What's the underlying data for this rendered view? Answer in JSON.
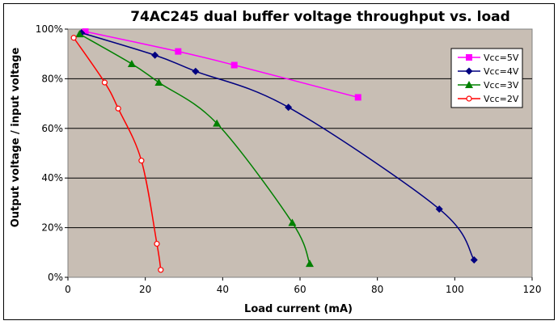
{
  "chart_data": {
    "type": "line",
    "title": "74AC245 dual buffer voltage throughput vs. load",
    "xlabel": "Load current (mA)",
    "ylabel": "Output voltage / input voltage",
    "xlim": [
      0,
      120
    ],
    "ylim": [
      0,
      100
    ],
    "x_ticks": [
      "0",
      "20",
      "40",
      "60",
      "80",
      "100",
      "120"
    ],
    "y_ticks": [
      "0%",
      "20%",
      "40%",
      "60%",
      "80%",
      "100%"
    ],
    "grid": "horizontal",
    "legend_position": "top-right",
    "series": [
      {
        "name": "Vcc=5V",
        "color": "#FF00FF",
        "marker": "square",
        "points": [
          [
            4.5,
            99
          ],
          [
            28.5,
            91
          ],
          [
            43,
            85.5
          ],
          [
            75,
            72.5
          ]
        ]
      },
      {
        "name": "Vcc=4V",
        "color": "#000080",
        "marker": "diamond",
        "points": [
          [
            3.5,
            98.5
          ],
          [
            22.5,
            89.5
          ],
          [
            33,
            83
          ],
          [
            57,
            68.5
          ],
          [
            96,
            27.5
          ],
          [
            105,
            7
          ]
        ]
      },
      {
        "name": "Vcc=3V",
        "color": "#008000",
        "marker": "triangle",
        "points": [
          [
            3,
            98
          ],
          [
            16.5,
            86
          ],
          [
            23.5,
            78.5
          ],
          [
            38.5,
            62
          ],
          [
            58,
            22
          ],
          [
            62.5,
            5.5
          ]
        ]
      },
      {
        "name": "Vcc=2V",
        "color": "#FF0000",
        "marker": "circle",
        "points": [
          [
            1.5,
            96.5
          ],
          [
            9.5,
            78.5
          ],
          [
            13,
            68
          ],
          [
            19,
            47
          ],
          [
            23,
            13.5
          ],
          [
            24,
            3
          ]
        ]
      }
    ]
  }
}
